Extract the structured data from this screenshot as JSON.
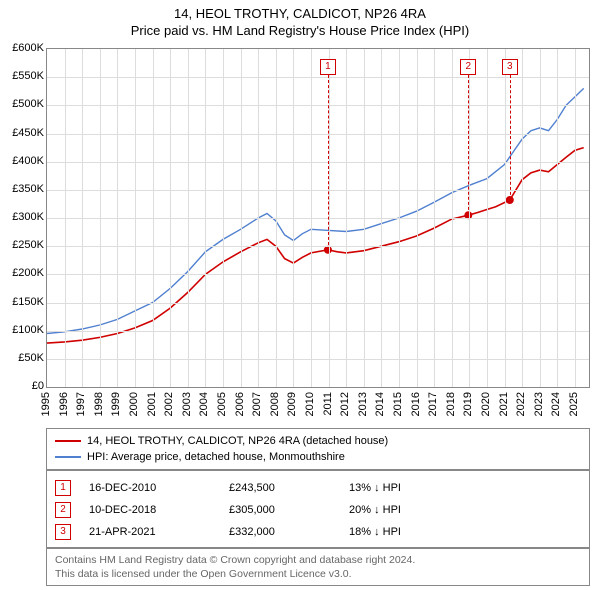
{
  "title1": "14, HEOL TROTHY, CALDICOT, NP26 4RA",
  "title2": "Price paid vs. HM Land Registry's House Price Index (HPI)",
  "chart": {
    "type": "line",
    "x_min": 1995,
    "x_max": 2025.8,
    "y_min": 0,
    "y_max": 600000,
    "y_ticks": [
      0,
      50000,
      100000,
      150000,
      200000,
      250000,
      300000,
      350000,
      400000,
      450000,
      500000,
      550000,
      600000
    ],
    "y_tick_labels": [
      "£0",
      "£50K",
      "£100K",
      "£150K",
      "£200K",
      "£250K",
      "£300K",
      "£350K",
      "£400K",
      "£450K",
      "£500K",
      "£550K",
      "£600K"
    ],
    "x_ticks": [
      1995,
      1996,
      1997,
      1998,
      1999,
      2000,
      2001,
      2002,
      2003,
      2004,
      2005,
      2006,
      2007,
      2008,
      2009,
      2010,
      2011,
      2012,
      2013,
      2014,
      2015,
      2016,
      2017,
      2018,
      2019,
      2020,
      2021,
      2022,
      2023,
      2024,
      2025
    ],
    "background_color": "#ffffff",
    "grid_color": "#dddddd",
    "border_color": "#888888",
    "series": [
      {
        "name": "property",
        "color": "#d00000",
        "width": 1.6,
        "points": [
          [
            1995,
            78000
          ],
          [
            1996,
            80000
          ],
          [
            1997,
            83000
          ],
          [
            1998,
            88000
          ],
          [
            1999,
            95000
          ],
          [
            2000,
            105000
          ],
          [
            2001,
            118000
          ],
          [
            2002,
            140000
          ],
          [
            2003,
            168000
          ],
          [
            2004,
            200000
          ],
          [
            2005,
            222000
          ],
          [
            2006,
            240000
          ],
          [
            2007,
            256000
          ],
          [
            2007.5,
            262000
          ],
          [
            2008,
            250000
          ],
          [
            2008.5,
            228000
          ],
          [
            2009,
            220000
          ],
          [
            2009.5,
            230000
          ],
          [
            2010,
            238000
          ],
          [
            2010.96,
            243500
          ],
          [
            2011.5,
            240000
          ],
          [
            2012,
            238000
          ],
          [
            2012.5,
            240000
          ],
          [
            2013,
            242000
          ],
          [
            2014,
            250000
          ],
          [
            2015,
            258000
          ],
          [
            2016,
            268000
          ],
          [
            2017,
            282000
          ],
          [
            2018,
            298000
          ],
          [
            2018.94,
            305000
          ],
          [
            2019.5,
            310000
          ],
          [
            2020,
            315000
          ],
          [
            2020.5,
            320000
          ],
          [
            2021.3,
            332000
          ],
          [
            2022,
            368000
          ],
          [
            2022.5,
            380000
          ],
          [
            2023,
            385000
          ],
          [
            2023.5,
            382000
          ],
          [
            2024,
            395000
          ],
          [
            2024.5,
            408000
          ],
          [
            2025,
            420000
          ],
          [
            2025.5,
            425000
          ]
        ]
      },
      {
        "name": "hpi",
        "color": "#5080d0",
        "width": 1.4,
        "points": [
          [
            1995,
            95000
          ],
          [
            1996,
            98000
          ],
          [
            1997,
            103000
          ],
          [
            1998,
            110000
          ],
          [
            1999,
            120000
          ],
          [
            2000,
            135000
          ],
          [
            2001,
            150000
          ],
          [
            2002,
            175000
          ],
          [
            2003,
            205000
          ],
          [
            2004,
            240000
          ],
          [
            2005,
            262000
          ],
          [
            2006,
            280000
          ],
          [
            2007,
            300000
          ],
          [
            2007.5,
            308000
          ],
          [
            2008,
            295000
          ],
          [
            2008.5,
            270000
          ],
          [
            2009,
            260000
          ],
          [
            2009.5,
            272000
          ],
          [
            2010,
            280000
          ],
          [
            2011,
            278000
          ],
          [
            2012,
            276000
          ],
          [
            2013,
            280000
          ],
          [
            2014,
            290000
          ],
          [
            2015,
            300000
          ],
          [
            2016,
            312000
          ],
          [
            2017,
            328000
          ],
          [
            2018,
            345000
          ],
          [
            2019,
            358000
          ],
          [
            2020,
            370000
          ],
          [
            2021,
            395000
          ],
          [
            2022,
            440000
          ],
          [
            2022.5,
            455000
          ],
          [
            2023,
            460000
          ],
          [
            2023.5,
            455000
          ],
          [
            2024,
            475000
          ],
          [
            2024.5,
            500000
          ],
          [
            2025,
            515000
          ],
          [
            2025.5,
            530000
          ]
        ]
      }
    ],
    "sale_markers": [
      {
        "n": "1",
        "x": 2010.96,
        "y": 243500
      },
      {
        "n": "2",
        "x": 2018.94,
        "y": 305000
      },
      {
        "n": "3",
        "x": 2021.3,
        "y": 332000
      }
    ]
  },
  "legend": {
    "items": [
      {
        "color": "#d00000",
        "label": "14, HEOL TROTHY, CALDICOT, NP26 4RA (detached house)"
      },
      {
        "color": "#5080d0",
        "label": "HPI: Average price, detached house, Monmouthshire"
      }
    ]
  },
  "sales": [
    {
      "n": "1",
      "date": "16-DEC-2010",
      "price": "£243,500",
      "delta": "13% ↓ HPI"
    },
    {
      "n": "2",
      "date": "10-DEC-2018",
      "price": "£305,000",
      "delta": "20% ↓ HPI"
    },
    {
      "n": "3",
      "date": "21-APR-2021",
      "price": "£332,000",
      "delta": "18% ↓ HPI"
    }
  ],
  "footer": {
    "line1": "Contains HM Land Registry data © Crown copyright and database right 2024.",
    "line2": "This data is licensed under the Open Government Licence v3.0."
  }
}
